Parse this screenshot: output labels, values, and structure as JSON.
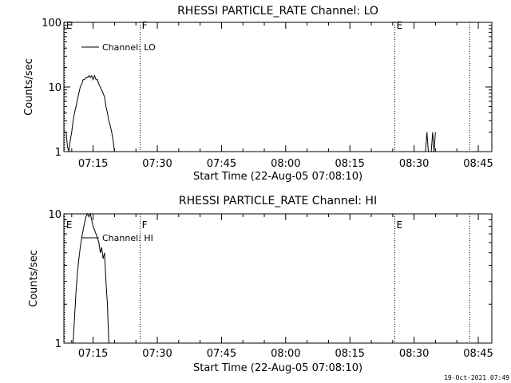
{
  "timestamp": "19-Oct-2021 07:49",
  "chart_data": [
    {
      "type": "line",
      "title": "RHESSI PARTICLE_RATE Channel: LO",
      "xlabel": "Start Time (22-Aug-05 07:08:10)",
      "ylabel": "Counts/sec",
      "y_scale": "log",
      "ylim": [
        1,
        100
      ],
      "xlim": [
        "07:08:10",
        "08:48:10"
      ],
      "x_tick_labels": [
        "07:15",
        "07:30",
        "07:45",
        "08:00",
        "08:15",
        "08:30",
        "08:45"
      ],
      "y_tick_labels": [
        "1",
        "10",
        "100"
      ],
      "legend": {
        "label": "Channel: LO",
        "placement": "top-left"
      },
      "grid": false,
      "markers": [
        {
          "label": "E",
          "time": "07:08:20",
          "style": "dotted"
        },
        {
          "label": "F",
          "time": "07:26:00",
          "style": "dotted"
        },
        {
          "label": "E",
          "time": "08:25:30",
          "style": "dotted"
        },
        {
          "label": "",
          "time": "08:43:00",
          "style": "dotted"
        }
      ],
      "series": [
        {
          "name": "Channel: LO",
          "segments": [
            {
              "x": [
                "07:08:40",
                "07:09:00",
                "07:09:20",
                "07:09:40",
                "07:10:00",
                "07:10:20",
                "07:10:40",
                "07:11:00",
                "07:11:20",
                "07:11:40",
                "07:12:00",
                "07:12:20",
                "07:12:40",
                "07:13:00",
                "07:13:20",
                "07:13:40",
                "07:14:00",
                "07:14:20",
                "07:14:40",
                "07:15:00",
                "07:15:20",
                "07:15:40",
                "07:16:00",
                "07:16:20",
                "07:16:40",
                "07:17:00",
                "07:17:20",
                "07:17:40",
                "07:18:00",
                "07:18:20",
                "07:18:40",
                "07:19:00",
                "07:19:20",
                "07:19:40",
                "07:20:00"
              ],
              "y": [
                2,
                1.2,
                1,
                1.5,
                2,
                3,
                4,
                5,
                6.5,
                8,
                10,
                11,
                13,
                13,
                14,
                14,
                15,
                14,
                15,
                13,
                15,
                13,
                13,
                11,
                10,
                9,
                8,
                7,
                5,
                4,
                3,
                2.5,
                2,
                1.5,
                1
              ]
            },
            {
              "x": [
                "08:32:40",
                "08:33:00",
                "08:33:20",
                "08:33:40",
                "08:34:00",
                "08:34:20",
                "08:34:40",
                "08:35:00"
              ],
              "y": [
                1,
                2,
                1,
                1,
                1,
                2,
                1,
                2
              ]
            }
          ]
        }
      ]
    },
    {
      "type": "line",
      "title": "RHESSI PARTICLE_RATE Channel: HI",
      "xlabel": "Start Time (22-Aug-05 07:08:10)",
      "ylabel": "Counts/sec",
      "y_scale": "log",
      "ylim": [
        1,
        10
      ],
      "xlim": [
        "07:08:10",
        "08:48:10"
      ],
      "x_tick_labels": [
        "07:15",
        "07:30",
        "07:45",
        "08:00",
        "08:15",
        "08:30",
        "08:45"
      ],
      "y_tick_labels": [
        "1",
        "10"
      ],
      "legend": {
        "label": "Channel: HI",
        "placement": "top-left"
      },
      "grid": false,
      "markers": [
        {
          "label": "E",
          "time": "07:08:20",
          "style": "dotted"
        },
        {
          "label": "F",
          "time": "07:26:00",
          "style": "dotted"
        },
        {
          "label": "E",
          "time": "08:25:30",
          "style": "dotted"
        },
        {
          "label": "",
          "time": "08:43:00",
          "style": "dotted"
        }
      ],
      "series": [
        {
          "name": "Channel: HI",
          "segments": [
            {
              "x": [
                "07:10:20",
                "07:10:40",
                "07:11:00",
                "07:11:20",
                "07:11:40",
                "07:12:00",
                "07:12:20",
                "07:12:40",
                "07:13:00",
                "07:13:20",
                "07:13:40",
                "07:14:00",
                "07:14:20",
                "07:14:40",
                "07:15:00",
                "07:15:20",
                "07:15:40",
                "07:16:00",
                "07:16:20",
                "07:16:40",
                "07:17:00",
                "07:17:20",
                "07:17:40",
                "07:18:00",
                "07:18:20",
                "07:18:40"
              ],
              "y": [
                1,
                1.6,
                2.5,
                3.5,
                4.5,
                5.5,
                6.5,
                7.5,
                8.5,
                9.5,
                10,
                9.5,
                10,
                9,
                8,
                7.5,
                7,
                6.5,
                6,
                5,
                5.5,
                4.5,
                5,
                3,
                2,
                1
              ]
            }
          ]
        }
      ]
    }
  ]
}
